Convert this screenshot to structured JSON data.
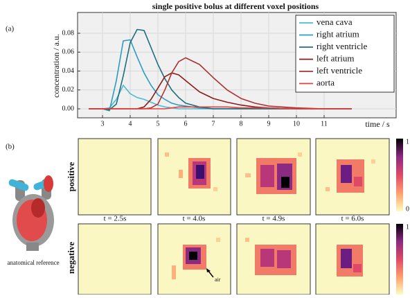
{
  "panel_a_label": "(a)",
  "chart_data": {
    "type": "line",
    "title": "single positive bolus at different voxel positions",
    "x_label": "time / s",
    "y_label": "concentration / a.u.",
    "x": [
      2.5,
      3,
      3.25,
      3.5,
      3.75,
      4,
      4.25,
      4.5,
      4.75,
      5,
      5.25,
      5.5,
      5.75,
      6,
      6.5,
      7,
      7.5,
      8,
      8.5,
      9,
      10,
      11,
      12
    ],
    "series": [
      {
        "name": "vena cava",
        "color": "#4cbcd6",
        "values": [
          0,
          0,
          0.001,
          0.01,
          0.025,
          0.016,
          0.012,
          0.01,
          0.007,
          0.004,
          0.002,
          0.001,
          0,
          0,
          0,
          0,
          0,
          0,
          0,
          0,
          0,
          0,
          0
        ]
      },
      {
        "name": "right atrium",
        "color": "#2a9dbf",
        "values": [
          0,
          0,
          -0.002,
          0.03,
          0.072,
          0.073,
          0.055,
          0.038,
          0.025,
          0.015,
          0.01,
          0.006,
          0.004,
          0.003,
          0.001,
          0,
          0,
          0,
          0,
          0,
          0,
          0,
          0
        ]
      },
      {
        "name": "right ventricle",
        "color": "#1e6e80",
        "values": [
          0,
          0,
          -0.001,
          0.005,
          0.035,
          0.07,
          0.084,
          0.083,
          0.065,
          0.047,
          0.032,
          0.02,
          0.012,
          0.006,
          0.002,
          0,
          0,
          0,
          0,
          0,
          0,
          0,
          0
        ]
      },
      {
        "name": "left atrium",
        "color": "#8b1a1a",
        "values": [
          0,
          0,
          0,
          0,
          0,
          0,
          0,
          0.002,
          0.01,
          0.022,
          0.034,
          0.038,
          0.036,
          0.03,
          0.018,
          0.011,
          0.007,
          0.004,
          0.002,
          0.001,
          0,
          0,
          0
        ]
      },
      {
        "name": "left ventricle",
        "color": "#b03030",
        "values": [
          0,
          0,
          0,
          0,
          0,
          0,
          0,
          0,
          0.001,
          0.005,
          0.02,
          0.038,
          0.05,
          0.054,
          0.047,
          0.033,
          0.02,
          0.011,
          0.006,
          0.003,
          0.001,
          0,
          0
        ]
      },
      {
        "name": "aorta",
        "color": "#e8403c",
        "values": [
          0,
          0,
          0,
          0,
          0,
          0,
          0,
          0,
          0,
          0,
          0,
          0.001,
          0.002,
          0.002,
          0.002,
          0.002,
          0.002,
          0.001,
          0.001,
          0.001,
          0,
          0,
          0
        ]
      }
    ],
    "xlim": [
      2.1,
      13.6
    ],
    "ylim": [
      -0.0095,
      0.102
    ],
    "xticks": [
      3,
      4,
      5,
      6,
      7,
      8,
      9,
      10,
      11
    ],
    "yticks": [
      {
        "value": 0,
        "label": "0.00"
      },
      {
        "value": 0.02,
        "label": "0.02"
      },
      {
        "value": 0.04,
        "label": "0.04"
      },
      {
        "value": 0.06,
        "label": "0.06"
      },
      {
        "value": 0.08,
        "label": "0.08"
      }
    ],
    "grid": true,
    "legend": "upper right"
  },
  "panel_b": {
    "label": "(b)",
    "rows": [
      "positive",
      "negative"
    ],
    "times": [
      "t = 2.5s",
      "t = 4.0s",
      "t = 4.9s",
      "t = 6.0s"
    ],
    "colorbar_ticks": [
      0,
      1
    ],
    "reference_label": "anatomical reference",
    "annotation": "air"
  }
}
